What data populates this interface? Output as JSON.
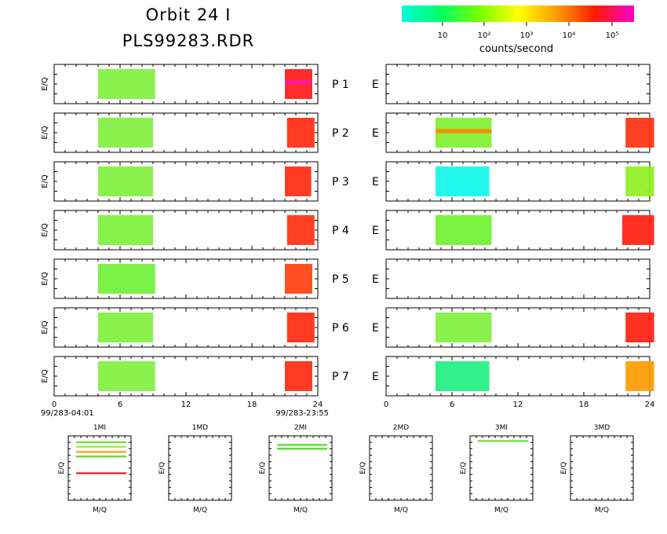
{
  "header": {
    "title_line1": "Orbit 24 I",
    "title_line2": "PLS99283.RDR"
  },
  "colorbar": {
    "label": "counts/second",
    "ticks": [
      "10",
      "10²",
      "10³",
      "10⁴",
      "10⁵"
    ],
    "gradient_colors": [
      "#00ffd9",
      "#00ff66",
      "#77ff00",
      "#ffff00",
      "#ff9d00",
      "#ff1a00",
      "#ff00cc"
    ]
  },
  "chart_data": [
    {
      "type": "heatmap",
      "id": "left_panels",
      "ylabel": "E/Q",
      "xlim": [
        0,
        24
      ],
      "xticks": [
        "0",
        "6",
        "12",
        "18",
        "24"
      ],
      "start_time": "99/283-04:01",
      "end_time": "99/283-23:55",
      "rows": [
        {
          "label": "P 1",
          "blocks": [
            {
              "x": [
                4.0,
                9.2
              ],
              "color": "#80f040"
            },
            {
              "x": [
                21.0,
                23.5
              ],
              "color": "#ff1a1a",
              "band_color": "#ff1aa0"
            }
          ]
        },
        {
          "label": "P 2",
          "blocks": [
            {
              "x": [
                4.0,
                9.0
              ],
              "color": "#80f040"
            },
            {
              "x": [
                21.2,
                23.7
              ],
              "color": "#ff2a10"
            }
          ]
        },
        {
          "label": "P 3",
          "blocks": [
            {
              "x": [
                4.0,
                9.0
              ],
              "color": "#80f040"
            },
            {
              "x": [
                21.0,
                23.4
              ],
              "color": "#ff2a10"
            }
          ]
        },
        {
          "label": "P 4",
          "blocks": [
            {
              "x": [
                4.0,
                9.0
              ],
              "color": "#7cf03c"
            },
            {
              "x": [
                21.2,
                23.7
              ],
              "color": "#ff3010"
            }
          ]
        },
        {
          "label": "P 5",
          "blocks": [
            {
              "x": [
                4.0,
                9.2
              ],
              "color": "#70f038"
            },
            {
              "x": [
                21.0,
                23.5
              ],
              "color": "#ff4010"
            }
          ]
        },
        {
          "label": "P 6",
          "blocks": [
            {
              "x": [
                4.0,
                9.0
              ],
              "color": "#80f040"
            },
            {
              "x": [
                21.2,
                23.7
              ],
              "color": "#ff2a10"
            }
          ]
        },
        {
          "label": "P 7",
          "blocks": [
            {
              "x": [
                4.0,
                9.2
              ],
              "color": "#80f040"
            },
            {
              "x": [
                21.0,
                23.5
              ],
              "color": "#ff2a10"
            }
          ]
        }
      ]
    },
    {
      "type": "heatmap",
      "id": "right_panels",
      "xlim": [
        0,
        24
      ],
      "xticks": [
        "0",
        "6",
        "12",
        "18",
        "24"
      ],
      "rows": [
        {
          "label": "E",
          "blocks": []
        },
        {
          "label": "E",
          "blocks": [
            {
              "x": [
                4.5,
                9.6
              ],
              "color": "#80f030",
              "band_color": "#ff8a00"
            },
            {
              "x": [
                21.8,
                24.4
              ],
              "color": "#ff3010"
            }
          ]
        },
        {
          "label": "E",
          "blocks": [
            {
              "x": [
                4.5,
                9.4
              ],
              "color": "#10f8e8"
            },
            {
              "x": [
                21.8,
                24.4
              ],
              "color": "#90f020"
            }
          ]
        },
        {
          "label": "E",
          "blocks": [
            {
              "x": [
                4.5,
                9.6
              ],
              "color": "#70f030"
            },
            {
              "x": [
                21.5,
                24.4
              ],
              "color": "#ff2010"
            }
          ]
        },
        {
          "label": "E",
          "blocks": []
        },
        {
          "label": "E",
          "blocks": [
            {
              "x": [
                4.5,
                9.6
              ],
              "color": "#80f040"
            },
            {
              "x": [
                21.8,
                24.4
              ],
              "color": "#ff2010"
            }
          ]
        },
        {
          "label": "E",
          "blocks": [
            {
              "x": [
                4.5,
                9.4
              ],
              "color": "#20f080"
            },
            {
              "x": [
                21.8,
                24.4
              ],
              "color": "#ff9a00"
            }
          ]
        }
      ]
    },
    {
      "type": "scatter",
      "id": "mq_panels",
      "xlabel": "M/Q",
      "ylabel": "E/Q",
      "panels": [
        {
          "title": "1MI",
          "lines": [
            {
              "y": 0.9,
              "color": "#66dd33"
            },
            {
              "y": 0.83,
              "color": "#99ee33"
            },
            {
              "y": 0.75,
              "color": "#ff9a00"
            },
            {
              "y": 0.68,
              "color": "#55dd33"
            },
            {
              "y": 0.42,
              "color": "#ee1111"
            }
          ]
        },
        {
          "title": "1MD",
          "lines": []
        },
        {
          "title": "2MI",
          "lines": [
            {
              "y": 0.86,
              "color": "#55dd33"
            },
            {
              "y": 0.8,
              "color": "#44dd22"
            }
          ]
        },
        {
          "title": "2MD",
          "lines": []
        },
        {
          "title": "3MI",
          "lines": [
            {
              "y": 0.92,
              "color": "#66dd33"
            }
          ]
        },
        {
          "title": "3MD",
          "lines": []
        }
      ]
    }
  ]
}
